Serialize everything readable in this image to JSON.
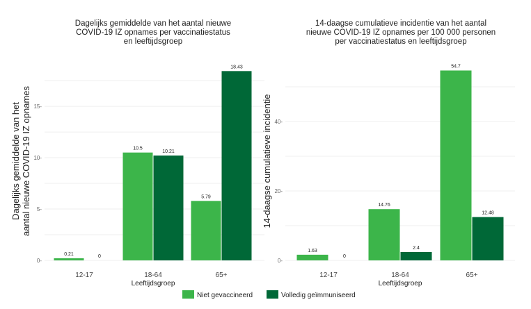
{
  "colors": {
    "Niet gevaccineerd": "#3cb54a",
    "Volledig geïmmuniseerd": "#006837"
  },
  "legend": [
    "Niet gevaccineerd",
    "Volledig geïmmuniseerd"
  ],
  "chart_data": [
    {
      "type": "bar",
      "title": [
        "Dagelijks gemiddelde van het aantal nieuwe",
        "COVID-19 IZ opnames per vaccinatiestatus",
        "en leeftijdsgroep"
      ],
      "xlabel": "Leeftijdsgroep",
      "ylabel": [
        "Dagelijks gemiddelde van het",
        "aantal nieuwe COVID-19 IZ opnames"
      ],
      "categories": [
        "12-17",
        "18-64",
        "65+"
      ],
      "yticks": [
        0,
        5,
        10,
        15
      ],
      "ylim": [
        0,
        19.4
      ],
      "series": [
        {
          "name": "Niet gevaccineerd",
          "values": [
            0.21,
            10.5,
            5.79
          ]
        },
        {
          "name": "Volledig geïmmuniseerd",
          "values": [
            0,
            10.21,
            18.43
          ]
        }
      ],
      "legend": "bottom",
      "grid": true
    },
    {
      "type": "bar",
      "title": [
        "14-daagse cumulatieve incidentie van het aantal",
        "nieuwe COVID-19 IZ opnames per 100 000 personen",
        "per vaccinatiestatus en leeftijdsgroep"
      ],
      "xlabel": "Leeftijdsgroep",
      "ylabel": [
        "14-daagse cumulatieve incidentie"
      ],
      "categories": [
        "12-17",
        "18-64",
        "65+"
      ],
      "yticks": [
        0,
        20,
        40
      ],
      "ylim": [
        0,
        57.4
      ],
      "series": [
        {
          "name": "Niet gevaccineerd",
          "values": [
            1.63,
            14.76,
            54.7
          ]
        },
        {
          "name": "Volledig geïmmuniseerd",
          "values": [
            0,
            2.4,
            12.48
          ]
        }
      ],
      "legend": "bottom",
      "grid": true
    }
  ]
}
